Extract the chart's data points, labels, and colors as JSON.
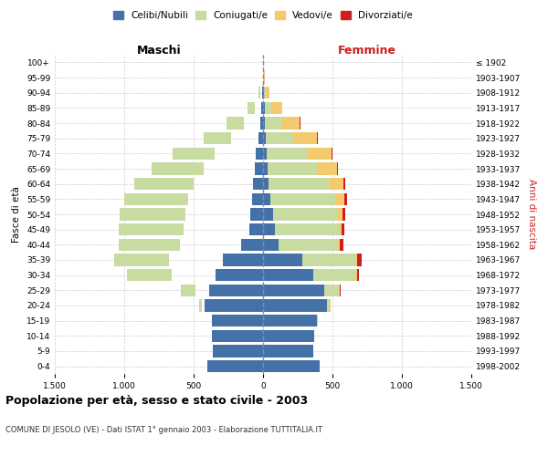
{
  "age_groups": [
    "0-4",
    "5-9",
    "10-14",
    "15-19",
    "20-24",
    "25-29",
    "30-34",
    "35-39",
    "40-44",
    "45-49",
    "50-54",
    "55-59",
    "60-64",
    "65-69",
    "70-74",
    "75-79",
    "80-84",
    "85-89",
    "90-94",
    "95-99",
    "100+"
  ],
  "birth_years": [
    "1998-2002",
    "1993-1997",
    "1988-1992",
    "1983-1987",
    "1978-1982",
    "1973-1977",
    "1968-1972",
    "1963-1967",
    "1958-1962",
    "1953-1957",
    "1948-1952",
    "1943-1947",
    "1938-1942",
    "1933-1937",
    "1928-1932",
    "1923-1927",
    "1918-1922",
    "1913-1917",
    "1908-1912",
    "1903-1907",
    "≤ 1902"
  ],
  "maschi": {
    "celibi": [
      400,
      360,
      370,
      370,
      420,
      390,
      340,
      290,
      160,
      100,
      90,
      80,
      70,
      60,
      50,
      30,
      20,
      10,
      5,
      2,
      0
    ],
    "coniugati": [
      0,
      0,
      0,
      2,
      20,
      100,
      320,
      390,
      440,
      470,
      470,
      460,
      430,
      370,
      300,
      200,
      120,
      50,
      15,
      3,
      0
    ],
    "vedovi": [
      0,
      0,
      0,
      0,
      5,
      5,
      5,
      5,
      5,
      5,
      5,
      10,
      15,
      15,
      25,
      20,
      15,
      10,
      5,
      2,
      0
    ],
    "divorziati": [
      0,
      0,
      0,
      0,
      5,
      5,
      15,
      25,
      20,
      20,
      20,
      20,
      15,
      10,
      5,
      5,
      5,
      0,
      0,
      0,
      0
    ]
  },
  "femmine": {
    "nubili": [
      410,
      360,
      370,
      390,
      460,
      440,
      360,
      280,
      110,
      85,
      70,
      55,
      40,
      30,
      25,
      20,
      15,
      10,
      5,
      2,
      0
    ],
    "coniugate": [
      0,
      0,
      0,
      2,
      20,
      110,
      310,
      390,
      430,
      460,
      470,
      470,
      440,
      360,
      290,
      200,
      120,
      50,
      15,
      3,
      0
    ],
    "vedove": [
      0,
      0,
      0,
      0,
      5,
      5,
      5,
      10,
      15,
      20,
      30,
      60,
      100,
      140,
      180,
      170,
      130,
      80,
      25,
      5,
      0
    ],
    "divorziate": [
      0,
      0,
      0,
      0,
      5,
      5,
      15,
      30,
      25,
      20,
      20,
      20,
      15,
      10,
      5,
      5,
      5,
      0,
      0,
      0,
      0
    ]
  },
  "colors": {
    "celibi": "#4472a8",
    "coniugati": "#c8dba0",
    "vedovi": "#f5c96e",
    "divorziati": "#cc2020"
  },
  "title": "Popolazione per età, sesso e stato civile - 2003",
  "subtitle": "COMUNE DI JESOLO (VE) - Dati ISTAT 1° gennaio 2003 - Elaborazione TUTTITALIA.IT",
  "xlabel_left": "Maschi",
  "xlabel_right": "Femmine",
  "ylabel_left": "Fasce di età",
  "ylabel_right": "Anni di nascita",
  "xlim": 1500,
  "xticks": [
    -1500,
    -1000,
    -500,
    0,
    500,
    1000,
    1500
  ],
  "xticklabels": [
    "1.500",
    "1.000",
    "500",
    "0",
    "500",
    "1.000",
    "1.500"
  ],
  "legend_labels": [
    "Celibi/Nubili",
    "Coniugati/e",
    "Vedovi/e",
    "Divorziati/e"
  ],
  "legend_colors": [
    "#4472a8",
    "#c8dba0",
    "#f5c96e",
    "#cc2020"
  ],
  "bg_color": "#ffffff",
  "grid_color": "#cccccc"
}
